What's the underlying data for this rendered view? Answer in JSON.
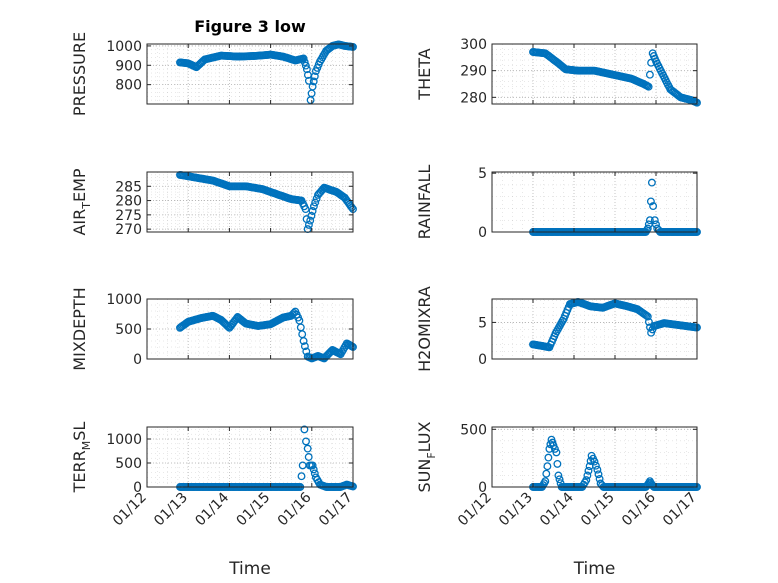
{
  "figure": {
    "title": "Figure 3 low"
  },
  "colors": {
    "marker": "#0072BD",
    "axis": "#262626",
    "grid": "#b0b0b0",
    "background": "#ffffff"
  },
  "chart_data": [
    {
      "id": "pressure",
      "type": "scatter",
      "ylabel": "PRESSURE",
      "title": "Figure 3 low",
      "ylim": [
        700,
        1010
      ],
      "yticks": [
        800,
        900,
        1000
      ],
      "xlim": [
        0,
        5
      ],
      "xticks": [
        "01/12",
        "01/13",
        "01/14",
        "01/15",
        "01/16",
        "01/17"
      ],
      "show_xtick_labels": false,
      "grid": true,
      "legend": "none",
      "keypoints": [
        [
          0.8,
          915
        ],
        [
          1.0,
          910
        ],
        [
          1.2,
          890
        ],
        [
          1.4,
          930
        ],
        [
          1.8,
          950
        ],
        [
          2.2,
          945
        ],
        [
          2.6,
          948
        ],
        [
          3.0,
          955
        ],
        [
          3.3,
          945
        ],
        [
          3.6,
          925
        ],
        [
          3.8,
          935
        ],
        [
          3.88,
          880
        ],
        [
          3.93,
          820
        ],
        [
          3.97,
          720
        ],
        [
          4.02,
          790
        ],
        [
          4.1,
          870
        ],
        [
          4.2,
          920
        ],
        [
          4.35,
          975
        ],
        [
          4.5,
          1000
        ],
        [
          4.65,
          1008
        ],
        [
          4.8,
          1000
        ],
        [
          5.0,
          995
        ]
      ]
    },
    {
      "id": "theta",
      "type": "scatter",
      "ylabel": "THETA",
      "ylim": [
        277.5,
        300
      ],
      "yticks": [
        280,
        290,
        300
      ],
      "xlim": [
        0,
        5
      ],
      "xticks": [
        "01/12",
        "01/13",
        "01/14",
        "01/15",
        "01/16",
        "01/17"
      ],
      "show_xtick_labels": false,
      "grid": true,
      "legend": "none",
      "keypoints": [
        [
          1.0,
          297
        ],
        [
          1.3,
          296.5
        ],
        [
          1.6,
          293
        ],
        [
          1.8,
          290.5
        ],
        [
          2.1,
          290
        ],
        [
          2.5,
          290
        ],
        [
          2.8,
          289
        ],
        [
          3.1,
          288
        ],
        [
          3.4,
          287
        ],
        [
          3.7,
          285
        ],
        [
          3.82,
          284
        ],
        [
          3.88,
          293
        ],
        [
          3.92,
          296.5
        ],
        [
          4.0,
          293.5
        ],
        [
          4.15,
          289
        ],
        [
          4.35,
          283
        ],
        [
          4.6,
          280
        ],
        [
          4.85,
          279
        ],
        [
          5.0,
          278
        ]
      ]
    },
    {
      "id": "air_temp",
      "type": "scatter",
      "ylabel": "AIR_TEMP",
      "ylim": [
        269,
        290
      ],
      "yticks": [
        270,
        275,
        280,
        285
      ],
      "xlim": [
        0,
        5
      ],
      "xticks": [
        "01/12",
        "01/13",
        "01/14",
        "01/15",
        "01/16",
        "01/17"
      ],
      "show_xtick_labels": false,
      "grid": true,
      "legend": "none",
      "keypoints": [
        [
          0.8,
          289
        ],
        [
          1.2,
          288
        ],
        [
          1.6,
          287
        ],
        [
          2.0,
          285
        ],
        [
          2.4,
          285
        ],
        [
          2.8,
          284
        ],
        [
          3.2,
          282
        ],
        [
          3.5,
          280.5
        ],
        [
          3.75,
          280
        ],
        [
          3.85,
          277
        ],
        [
          3.9,
          270
        ],
        [
          3.96,
          273
        ],
        [
          4.05,
          278
        ],
        [
          4.15,
          282
        ],
        [
          4.3,
          284.5
        ],
        [
          4.6,
          283
        ],
        [
          4.8,
          281
        ],
        [
          5.0,
          277
        ]
      ]
    },
    {
      "id": "rainfall",
      "type": "scatter",
      "ylabel": "RAINFALL",
      "ylim": [
        0,
        5.1
      ],
      "yticks": [
        0,
        5
      ],
      "xlim": [
        0,
        5
      ],
      "xticks": [
        "01/12",
        "01/13",
        "01/14",
        "01/15",
        "01/16",
        "01/17"
      ],
      "show_xtick_labels": false,
      "grid": true,
      "legend": "none",
      "keypoints": [
        [
          1.0,
          0
        ],
        [
          3.75,
          0
        ],
        [
          3.8,
          0.3
        ],
        [
          3.85,
          1.0
        ],
        [
          3.9,
          4.2
        ],
        [
          3.93,
          2.2
        ],
        [
          3.97,
          1.0
        ],
        [
          4.03,
          0.3
        ],
        [
          4.1,
          0
        ],
        [
          5.0,
          0
        ]
      ]
    },
    {
      "id": "mixdepth",
      "type": "scatter",
      "ylabel": "MIXDEPTH",
      "ylim": [
        0,
        1000
      ],
      "yticks": [
        0,
        500,
        1000
      ],
      "xlim": [
        0,
        5
      ],
      "xticks": [
        "01/12",
        "01/13",
        "01/14",
        "01/15",
        "01/16",
        "01/17"
      ],
      "show_xtick_labels": false,
      "grid": true,
      "legend": "none",
      "keypoints": [
        [
          0.8,
          520
        ],
        [
          1.0,
          620
        ],
        [
          1.3,
          680
        ],
        [
          1.6,
          720
        ],
        [
          1.8,
          650
        ],
        [
          2.0,
          520
        ],
        [
          2.2,
          700
        ],
        [
          2.4,
          590
        ],
        [
          2.7,
          550
        ],
        [
          3.0,
          580
        ],
        [
          3.3,
          690
        ],
        [
          3.5,
          720
        ],
        [
          3.6,
          790
        ],
        [
          3.7,
          640
        ],
        [
          3.8,
          300
        ],
        [
          3.9,
          40
        ],
        [
          4.0,
          10
        ],
        [
          4.15,
          50
        ],
        [
          4.3,
          10
        ],
        [
          4.5,
          150
        ],
        [
          4.7,
          80
        ],
        [
          4.85,
          260
        ],
        [
          5.0,
          200
        ]
      ]
    },
    {
      "id": "h2omixra",
      "type": "scatter",
      "ylabel": "H2OMIXRA",
      "ylim": [
        0,
        8.2
      ],
      "yticks": [
        0,
        5
      ],
      "xlim": [
        0,
        5
      ],
      "xticks": [
        "01/12",
        "01/13",
        "01/14",
        "01/15",
        "01/16",
        "01/17"
      ],
      "show_xtick_labels": false,
      "grid": true,
      "legend": "none",
      "keypoints": [
        [
          1.0,
          2.0
        ],
        [
          1.2,
          1.8
        ],
        [
          1.4,
          1.6
        ],
        [
          1.55,
          3.5
        ],
        [
          1.75,
          5.5
        ],
        [
          1.9,
          7.5
        ],
        [
          2.1,
          7.8
        ],
        [
          2.4,
          7.2
        ],
        [
          2.7,
          7.0
        ],
        [
          3.0,
          7.6
        ],
        [
          3.3,
          7.2
        ],
        [
          3.55,
          6.8
        ],
        [
          3.8,
          5.8
        ],
        [
          3.88,
          3.6
        ],
        [
          3.95,
          4.5
        ],
        [
          4.2,
          4.9
        ],
        [
          4.6,
          4.6
        ],
        [
          5.0,
          4.3
        ]
      ]
    },
    {
      "id": "terr_msl",
      "type": "scatter",
      "ylabel": "TERR_MSL",
      "ylim": [
        0,
        1250
      ],
      "yticks": [
        0,
        500,
        1000
      ],
      "xlim": [
        0,
        5
      ],
      "xticks": [
        "01/12",
        "01/13",
        "01/14",
        "01/15",
        "01/16",
        "01/17"
      ],
      "show_xtick_labels": true,
      "xlabel": "Time",
      "grid": true,
      "legend": "none",
      "keypoints": [
        [
          0.8,
          0
        ],
        [
          3.72,
          0
        ],
        [
          3.78,
          450
        ],
        [
          3.82,
          1200
        ],
        [
          3.86,
          950
        ],
        [
          3.9,
          800
        ],
        [
          3.95,
          450
        ],
        [
          4.02,
          450
        ],
        [
          4.1,
          200
        ],
        [
          4.2,
          50
        ],
        [
          4.35,
          0
        ],
        [
          4.7,
          0
        ],
        [
          4.85,
          50
        ],
        [
          5.0,
          10
        ]
      ]
    },
    {
      "id": "sun_flux",
      "type": "scatter",
      "ylabel": "SUN_FLUX",
      "ylim": [
        0,
        520
      ],
      "yticks": [
        0,
        500
      ],
      "xlim": [
        0,
        5
      ],
      "xticks": [
        "01/12",
        "01/13",
        "01/14",
        "01/15",
        "01/16",
        "01/17"
      ],
      "show_xtick_labels": true,
      "xlabel": "Time",
      "grid": true,
      "legend": "none",
      "keypoints": [
        [
          1.0,
          0
        ],
        [
          1.22,
          0
        ],
        [
          1.3,
          50
        ],
        [
          1.35,
          180
        ],
        [
          1.4,
          330
        ],
        [
          1.45,
          410
        ],
        [
          1.5,
          360
        ],
        [
          1.57,
          300
        ],
        [
          1.62,
          100
        ],
        [
          1.7,
          0
        ],
        [
          2.2,
          0
        ],
        [
          2.3,
          60
        ],
        [
          2.38,
          180
        ],
        [
          2.43,
          270
        ],
        [
          2.5,
          220
        ],
        [
          2.57,
          150
        ],
        [
          2.65,
          30
        ],
        [
          2.72,
          0
        ],
        [
          3.75,
          0
        ],
        [
          3.8,
          20
        ],
        [
          3.85,
          50
        ],
        [
          3.9,
          20
        ],
        [
          3.95,
          0
        ],
        [
          5.0,
          0
        ]
      ]
    }
  ]
}
